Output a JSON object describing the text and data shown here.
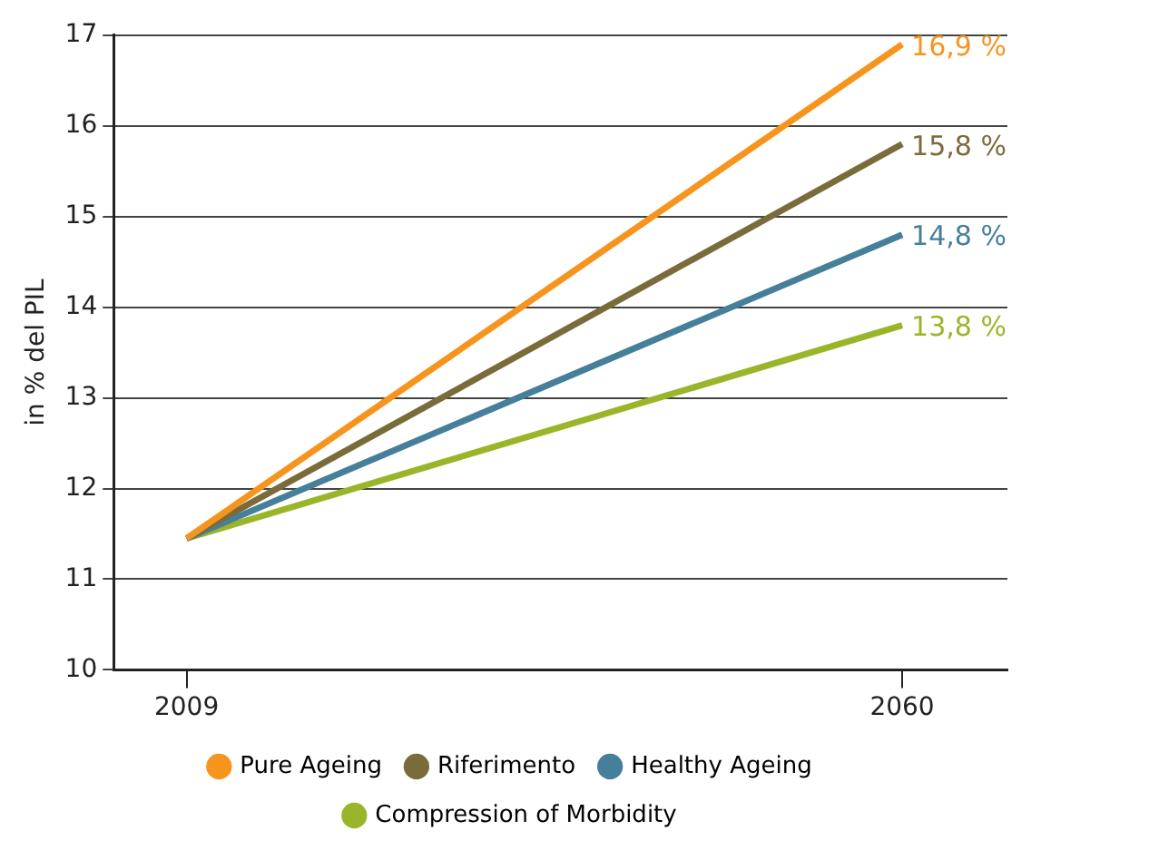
{
  "chart_data": {
    "type": "line",
    "ylabel": "in % del PIL",
    "x": [
      2009,
      2060
    ],
    "xlim": [
      2003.8,
      2067.5
    ],
    "xticks": [
      2009,
      2060
    ],
    "ylim": [
      10,
      17
    ],
    "yticks": [
      10,
      11,
      12,
      13,
      14,
      15,
      16,
      17
    ],
    "grid": "y",
    "legend": "bottom",
    "marker": "none",
    "line_style": "solid",
    "series": [
      {
        "name": "Pure Ageing",
        "color": "#f7941d",
        "values": [
          11.45,
          16.9
        ],
        "value_labels": [
          null,
          "16,9 %"
        ]
      },
      {
        "name": "Riferimento",
        "color": "#7a6c3a",
        "values": [
          11.45,
          15.8
        ],
        "value_labels": [
          null,
          "15,8 %"
        ]
      },
      {
        "name": "Healthy Ageing",
        "color": "#457f99",
        "values": [
          11.45,
          14.8
        ],
        "value_labels": [
          null,
          "14,8 %"
        ]
      },
      {
        "name": "Compression of Morbidity",
        "color": "#9ab52a",
        "values": [
          11.45,
          13.8
        ],
        "value_labels": [
          null,
          "13,8 %"
        ]
      }
    ]
  }
}
